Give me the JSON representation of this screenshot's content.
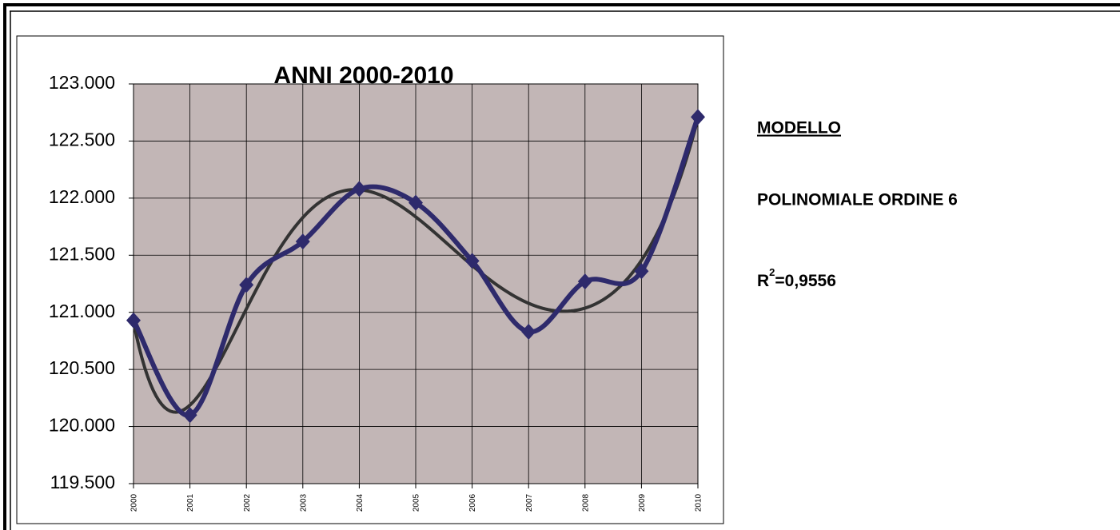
{
  "chart_data": {
    "type": "line",
    "title": "ANNI 2000-2010",
    "categories": [
      "2000",
      "2001",
      "2002",
      "2003",
      "2004",
      "2005",
      "2006",
      "2007",
      "2008",
      "2009",
      "2010"
    ],
    "series": [
      {
        "color": "#2e2a6c",
        "values": [
          120930,
          120100,
          121240,
          121620,
          122080,
          121960,
          121450,
          120830,
          121270,
          121360,
          122710
        ]
      }
    ],
    "ylim": [
      119500,
      123000
    ],
    "yticks": [
      {
        "value": 119500,
        "label": "119.500"
      },
      {
        "value": 120000,
        "label": "120.000"
      },
      {
        "value": 120500,
        "label": "120.500"
      },
      {
        "value": 121000,
        "label": "121.000"
      },
      {
        "value": 121500,
        "label": "121.500"
      },
      {
        "value": 122000,
        "label": "122.000"
      },
      {
        "value": 122500,
        "label": "122.500"
      },
      {
        "value": 123000,
        "label": "123.000"
      }
    ],
    "grid": true,
    "plot_background": "#c2b6b6",
    "trendline": {
      "kind": "polynomial",
      "order": 6,
      "color": "#333333"
    },
    "annotations": {
      "heading": "MODELLO",
      "model": "POLINOMIALE ORDINE 6",
      "r_squared": {
        "symbol": "R",
        "exponent": "2",
        "value": "=0,9556"
      }
    }
  }
}
